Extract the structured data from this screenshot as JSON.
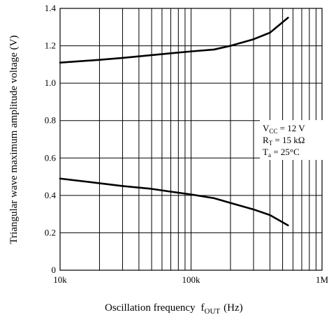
{
  "chart_data": {
    "type": "line",
    "xscale": "log",
    "xlim": [
      10000,
      1000000
    ],
    "ylim": [
      0,
      1.4
    ],
    "grid": true,
    "xlabel": "Oscillation frequency",
    "xlabel_symbol": "f",
    "xlabel_symbol_sub": "OUT",
    "xlabel_unit": "(Hz)",
    "ylabel": "Triangular wave maximum amplitude voltage  (V)",
    "xticks": [
      {
        "value": 10000,
        "label": "10k"
      },
      {
        "value": 100000,
        "label": "100k"
      },
      {
        "value": 1000000,
        "label": "1M"
      }
    ],
    "yticks": [
      {
        "value": 0,
        "label": "0"
      },
      {
        "value": 0.2,
        "label": "0.2"
      },
      {
        "value": 0.4,
        "label": "0.4"
      },
      {
        "value": 0.6,
        "label": "0.6"
      },
      {
        "value": 0.8,
        "label": "0.8"
      },
      {
        "value": 1.0,
        "label": "1.0"
      },
      {
        "value": 1.2,
        "label": "1.2"
      },
      {
        "value": 1.4,
        "label": "1.4"
      }
    ],
    "series": [
      {
        "points": [
          [
            10000,
            1.11
          ],
          [
            20000,
            1.125
          ],
          [
            30000,
            1.135
          ],
          [
            50000,
            1.15
          ],
          [
            70000,
            1.16
          ],
          [
            100000,
            1.17
          ],
          [
            150000,
            1.18
          ],
          [
            200000,
            1.2
          ],
          [
            300000,
            1.235
          ],
          [
            400000,
            1.27
          ],
          [
            550000,
            1.35
          ]
        ]
      },
      {
        "points": [
          [
            10000,
            0.49
          ],
          [
            20000,
            0.465
          ],
          [
            30000,
            0.45
          ],
          [
            50000,
            0.435
          ],
          [
            70000,
            0.42
          ],
          [
            100000,
            0.405
          ],
          [
            150000,
            0.385
          ],
          [
            200000,
            0.36
          ],
          [
            300000,
            0.325
          ],
          [
            400000,
            0.295
          ],
          [
            550000,
            0.24
          ]
        ]
      }
    ],
    "conditions": {
      "line1_main": "V",
      "line1_sub": "CC",
      "line1_rest": " = 12 V",
      "line2_main": "R",
      "line2_sub": "T",
      "line2_rest": " = 15 kΩ",
      "line3_main": "T",
      "line3_sub": "a",
      "line3_rest": " = 25°C"
    }
  }
}
